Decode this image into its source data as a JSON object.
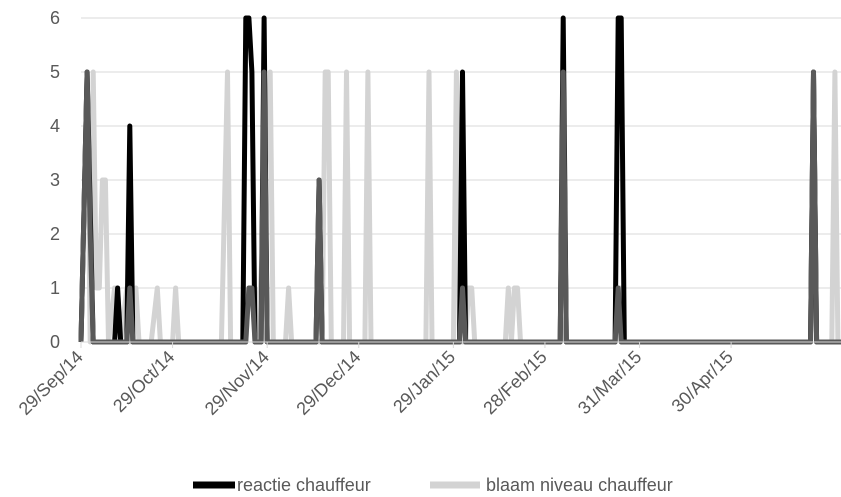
{
  "chart_data": {
    "type": "line",
    "title": "",
    "xlabel": "",
    "ylabel": "",
    "ylim": [
      0,
      6
    ],
    "yticks": [
      0,
      1,
      2,
      3,
      4,
      5,
      6
    ],
    "xlim": [
      "2014-09-29",
      "2015-06-05"
    ],
    "xtick_labels": [
      "29/Sep/14",
      "29/Oct/14",
      "29/Nov/14",
      "29/Dec/14",
      "29/Jan/15",
      "28/Feb/15",
      "31/Mar/15",
      "30/Apr/15"
    ],
    "xtick_dates": [
      "2014-09-29",
      "2014-10-29",
      "2014-11-29",
      "2014-12-29",
      "2015-01-29",
      "2015-02-28",
      "2015-03-31",
      "2015-04-30"
    ],
    "grid": true,
    "legend_position": "bottom",
    "series": [
      {
        "name": "blaam niveau chauffeur",
        "color": "#d3d3d3",
        "points": [
          [
            "2014-09-29",
            0
          ],
          [
            "2014-10-01",
            5
          ],
          [
            "2014-10-02",
            0
          ],
          [
            "2014-10-03",
            5
          ],
          [
            "2014-10-04",
            1
          ],
          [
            "2014-10-05",
            1
          ],
          [
            "2014-10-06",
            3
          ],
          [
            "2014-10-07",
            3
          ],
          [
            "2014-10-08",
            0
          ],
          [
            "2014-10-10",
            1
          ],
          [
            "2014-10-11",
            1
          ],
          [
            "2014-10-12",
            0
          ],
          [
            "2014-10-14",
            1
          ],
          [
            "2014-10-15",
            0
          ],
          [
            "2014-10-17",
            1
          ],
          [
            "2014-10-18",
            0
          ],
          [
            "2014-10-22",
            0
          ],
          [
            "2014-10-24",
            1
          ],
          [
            "2014-10-25",
            0
          ],
          [
            "2014-10-29",
            0
          ],
          [
            "2014-10-30",
            1
          ],
          [
            "2014-10-31",
            0
          ],
          [
            "2014-11-14",
            0
          ],
          [
            "2014-11-16",
            5
          ],
          [
            "2014-11-17",
            0
          ],
          [
            "2014-11-22",
            0
          ],
          [
            "2014-11-23",
            1
          ],
          [
            "2014-11-24",
            1
          ],
          [
            "2014-11-25",
            1
          ],
          [
            "2014-11-26",
            0
          ],
          [
            "2014-11-30",
            5
          ],
          [
            "2014-12-01",
            0
          ],
          [
            "2014-12-05",
            0
          ],
          [
            "2014-12-06",
            1
          ],
          [
            "2014-12-07",
            0
          ],
          [
            "2014-12-17",
            0
          ],
          [
            "2014-12-18",
            5
          ],
          [
            "2014-12-19",
            5
          ],
          [
            "2014-12-20",
            0
          ],
          [
            "2014-12-24",
            0
          ],
          [
            "2014-12-25",
            5
          ],
          [
            "2014-12-26",
            0
          ],
          [
            "2014-12-31",
            0
          ],
          [
            "2015-01-01",
            5
          ],
          [
            "2015-01-02",
            0
          ],
          [
            "2015-01-20",
            0
          ],
          [
            "2015-01-21",
            5
          ],
          [
            "2015-01-22",
            0
          ],
          [
            "2015-01-29",
            0
          ],
          [
            "2015-01-30",
            5
          ],
          [
            "2015-01-31",
            0
          ],
          [
            "2015-02-02",
            0
          ],
          [
            "2015-02-03",
            1
          ],
          [
            "2015-02-04",
            1
          ],
          [
            "2015-02-05",
            0
          ],
          [
            "2015-02-15",
            0
          ],
          [
            "2015-02-16",
            1
          ],
          [
            "2015-02-17",
            0
          ],
          [
            "2015-02-18",
            1
          ],
          [
            "2015-02-19",
            1
          ],
          [
            "2015-02-20",
            0
          ],
          [
            "2015-03-05",
            0
          ],
          [
            "2015-03-06",
            5
          ],
          [
            "2015-03-07",
            0
          ],
          [
            "2015-03-23",
            0
          ],
          [
            "2015-03-24",
            1
          ],
          [
            "2015-03-25",
            1
          ],
          [
            "2015-03-26",
            0
          ],
          [
            "2015-05-26",
            0
          ],
          [
            "2015-05-27",
            5
          ],
          [
            "2015-05-28",
            0
          ],
          [
            "2015-06-02",
            0
          ],
          [
            "2015-06-03",
            5
          ],
          [
            "2015-06-04",
            0
          ],
          [
            "2015-06-05",
            0
          ]
        ]
      },
      {
        "name": "reactie chauffeur",
        "color": "#000000",
        "points": [
          [
            "2014-09-29",
            0
          ],
          [
            "2014-10-01",
            5
          ],
          [
            "2014-10-03",
            0
          ],
          [
            "2014-10-10",
            0
          ],
          [
            "2014-10-11",
            1
          ],
          [
            "2014-10-12",
            0
          ],
          [
            "2014-10-14",
            0
          ],
          [
            "2014-10-15",
            4
          ],
          [
            "2014-10-16",
            0
          ],
          [
            "2014-11-21",
            0
          ],
          [
            "2014-11-22",
            6
          ],
          [
            "2014-11-23",
            6
          ],
          [
            "2014-11-24",
            5
          ],
          [
            "2014-11-25",
            0
          ],
          [
            "2014-11-27",
            0
          ],
          [
            "2014-11-28",
            6
          ],
          [
            "2014-11-29",
            0
          ],
          [
            "2014-12-15",
            0
          ],
          [
            "2014-12-16",
            3
          ],
          [
            "2014-12-17",
            0
          ],
          [
            "2015-01-31",
            0
          ],
          [
            "2015-02-01",
            5
          ],
          [
            "2015-02-02",
            0
          ],
          [
            "2015-03-05",
            0
          ],
          [
            "2015-03-06",
            6
          ],
          [
            "2015-03-07",
            0
          ],
          [
            "2015-03-23",
            0
          ],
          [
            "2015-03-24",
            6
          ],
          [
            "2015-03-25",
            6
          ],
          [
            "2015-03-26",
            0
          ],
          [
            "2015-05-26",
            0
          ],
          [
            "2015-05-27",
            5
          ],
          [
            "2015-05-28",
            0
          ],
          [
            "2015-06-05",
            0
          ]
        ]
      },
      {
        "name": "",
        "color": "#595959",
        "points": [
          [
            "2014-09-29",
            0
          ],
          [
            "2014-10-01",
            5
          ],
          [
            "2014-10-02",
            2
          ],
          [
            "2014-10-03",
            0
          ],
          [
            "2014-10-14",
            0
          ],
          [
            "2014-10-15",
            1
          ],
          [
            "2014-10-16",
            0
          ],
          [
            "2014-11-22",
            0
          ],
          [
            "2014-11-23",
            1
          ],
          [
            "2014-11-24",
            1
          ],
          [
            "2014-11-25",
            0
          ],
          [
            "2014-11-27",
            0
          ],
          [
            "2014-11-28",
            5
          ],
          [
            "2014-11-29",
            0
          ],
          [
            "2014-12-15",
            0
          ],
          [
            "2014-12-16",
            3
          ],
          [
            "2014-12-17",
            0
          ],
          [
            "2015-01-31",
            0
          ],
          [
            "2015-02-01",
            1
          ],
          [
            "2015-02-02",
            0
          ],
          [
            "2015-03-05",
            0
          ],
          [
            "2015-03-06",
            5
          ],
          [
            "2015-03-07",
            0
          ],
          [
            "2015-03-23",
            0
          ],
          [
            "2015-03-24",
            1
          ],
          [
            "2015-03-25",
            0
          ],
          [
            "2015-05-26",
            0
          ],
          [
            "2015-05-27",
            5
          ],
          [
            "2015-05-28",
            0
          ],
          [
            "2015-06-05",
            0
          ]
        ]
      }
    ],
    "legend": [
      {
        "label": "reactie chauffeur",
        "color": "#000000"
      },
      {
        "label": "blaam niveau chauffeur",
        "color": "#d3d3d3"
      }
    ]
  }
}
